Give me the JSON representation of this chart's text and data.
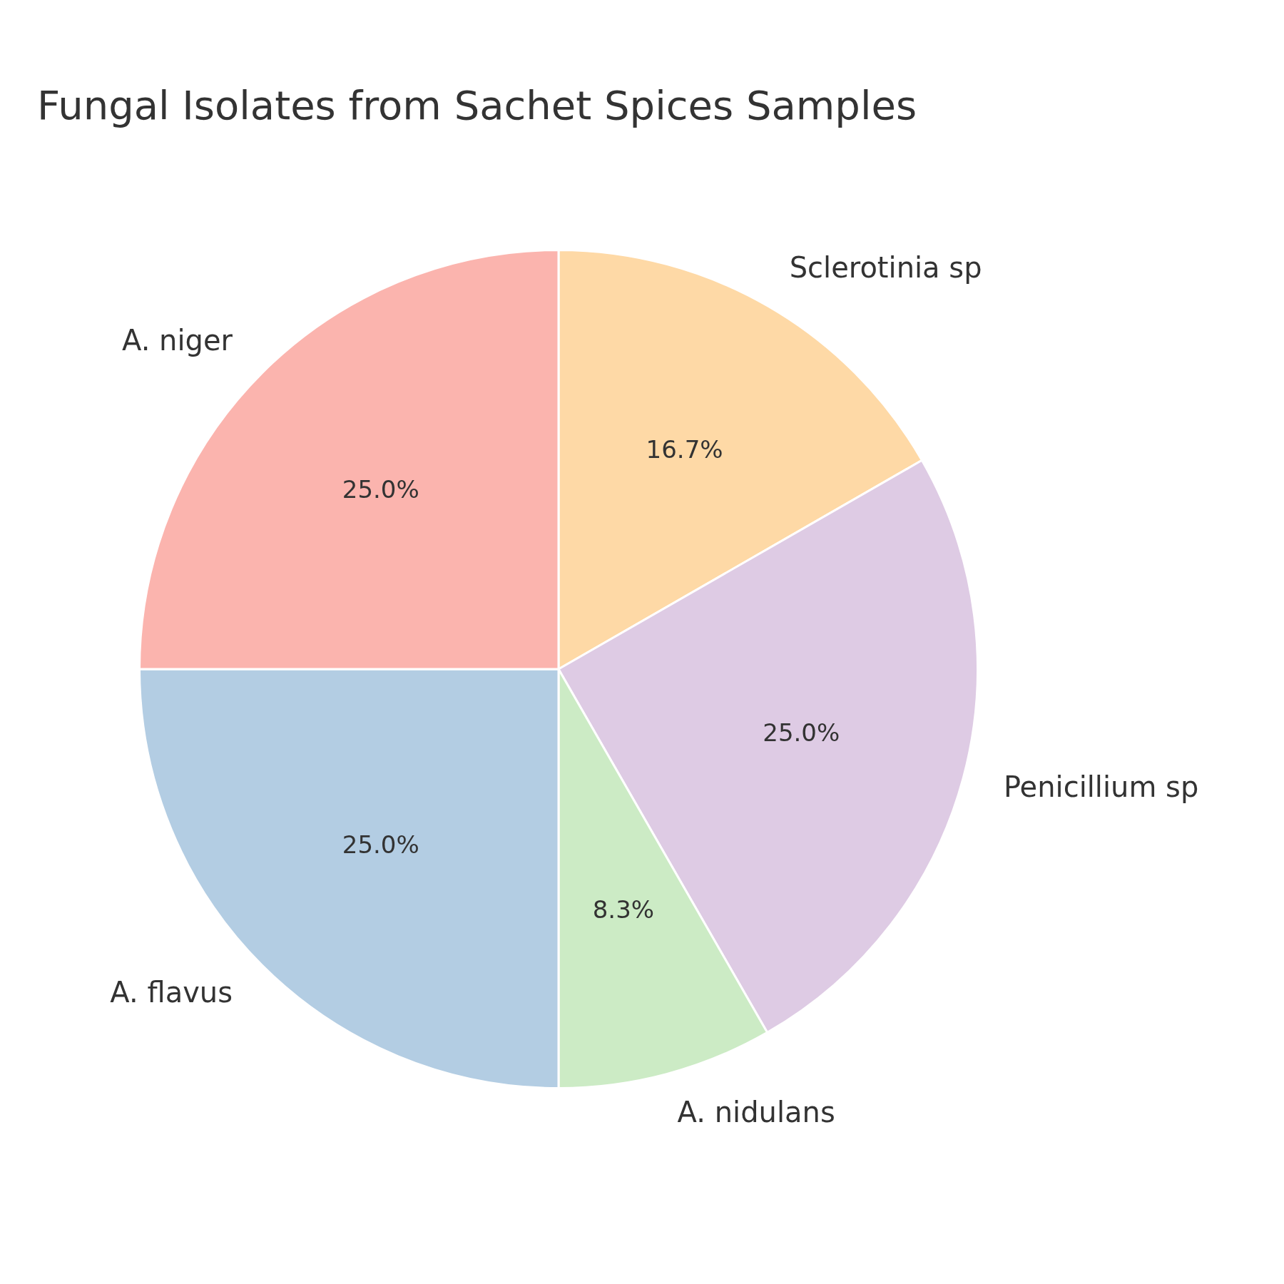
{
  "chart_data": {
    "type": "pie",
    "title": "Fungal Isolates from Sachet Spices Samples",
    "categories": [
      "Sclerotinia sp",
      "Penicillium sp",
      "A. nidulans",
      "A. flavus",
      "A. niger"
    ],
    "values": [
      16.7,
      25,
      8.3,
      25,
      25
    ],
    "colors": [
      "#fed9a6",
      "#decbe4",
      "#ccebc5",
      "#b3cde3",
      "#fbb4ae"
    ],
    "value_labels": [
      "16.7%",
      "25.0%",
      "8.3%",
      "25.0%",
      "25.0%"
    ],
    "legend": false
  }
}
